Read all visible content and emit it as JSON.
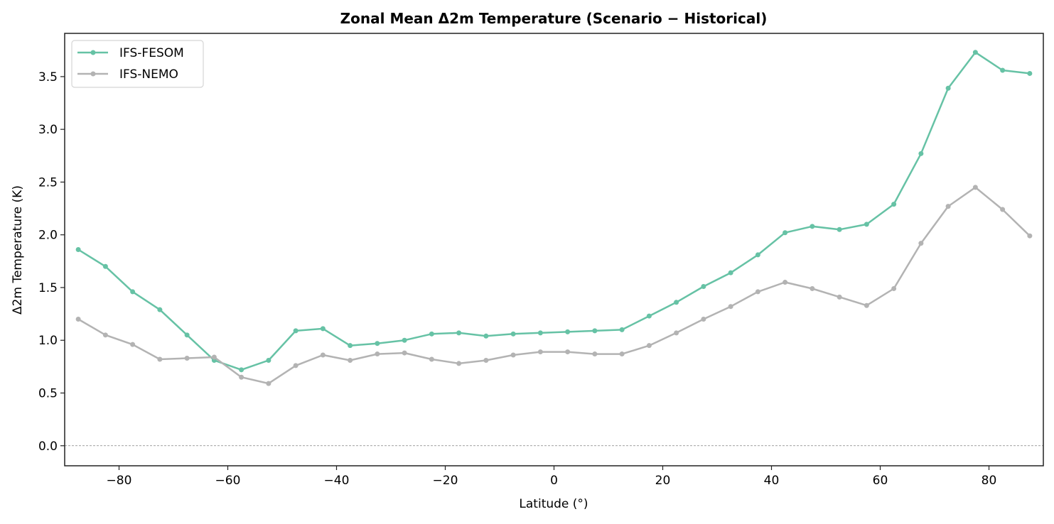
{
  "chart_data": {
    "type": "line",
    "title": "Zonal Mean Δ2m Temperature (Scenario − Historical)",
    "xlabel": "Latitude (°)",
    "ylabel": "Δ2m Temperature (K)",
    "xlim": [
      -90,
      90
    ],
    "ylim": [
      -0.19,
      3.91
    ],
    "xticks": [
      -80,
      -60,
      -40,
      -20,
      0,
      20,
      40,
      60,
      80
    ],
    "xtick_labels": [
      "−80",
      "−60",
      "−40",
      "−20",
      "0",
      "20",
      "40",
      "60",
      "80"
    ],
    "yticks": [
      0.0,
      0.5,
      1.0,
      1.5,
      2.0,
      2.5,
      3.0,
      3.5
    ],
    "ytick_labels": [
      "0.0",
      "0.5",
      "1.0",
      "1.5",
      "2.0",
      "2.5",
      "3.0",
      "3.5"
    ],
    "grid": false,
    "reference_line": {
      "y": 0,
      "style": "dashed",
      "color": "#808080"
    },
    "legend_position": "top-left",
    "x": [
      -87.5,
      -82.5,
      -77.5,
      -72.5,
      -67.5,
      -62.5,
      -57.5,
      -52.5,
      -47.5,
      -42.5,
      -37.5,
      -32.5,
      -27.5,
      -22.5,
      -17.5,
      -12.5,
      -7.5,
      -2.5,
      2.5,
      7.5,
      12.5,
      17.5,
      22.5,
      27.5,
      32.5,
      37.5,
      42.5,
      47.5,
      52.5,
      57.5,
      62.5,
      67.5,
      72.5,
      77.5,
      82.5,
      87.5
    ],
    "series": [
      {
        "name": "IFS-FESOM",
        "color": "#66c2a5",
        "values": [
          1.86,
          1.7,
          1.46,
          1.29,
          1.05,
          0.81,
          0.72,
          0.81,
          1.09,
          1.11,
          0.95,
          0.97,
          1.0,
          1.06,
          1.07,
          1.04,
          1.06,
          1.07,
          1.08,
          1.09,
          1.1,
          1.23,
          1.36,
          1.51,
          1.64,
          1.81,
          2.02,
          2.08,
          2.05,
          2.1,
          2.29,
          2.77,
          3.39,
          3.73,
          3.56,
          3.53
        ]
      },
      {
        "name": "IFS-NEMO",
        "color": "#b3b3b3",
        "values": [
          1.2,
          1.05,
          0.96,
          0.82,
          0.83,
          0.84,
          0.65,
          0.59,
          0.76,
          0.86,
          0.81,
          0.87,
          0.88,
          0.82,
          0.78,
          0.81,
          0.86,
          0.89,
          0.89,
          0.87,
          0.87,
          0.95,
          1.07,
          1.2,
          1.32,
          1.46,
          1.55,
          1.49,
          1.41,
          1.33,
          1.49,
          1.92,
          2.27,
          2.45,
          2.24,
          1.99
        ]
      }
    ]
  }
}
